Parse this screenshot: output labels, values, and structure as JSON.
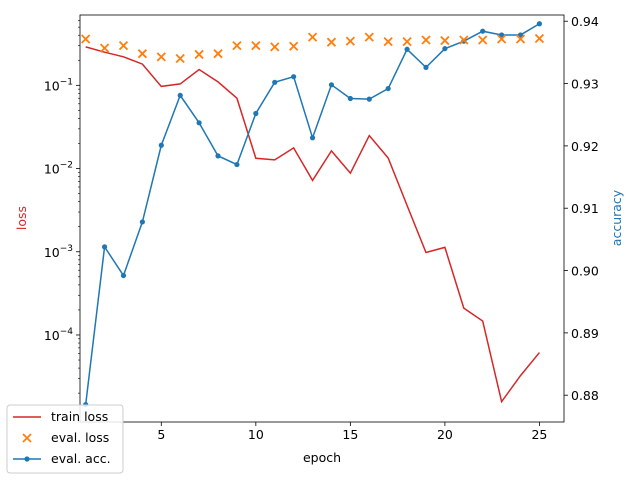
{
  "chart_data": {
    "type": "line",
    "title": "",
    "xlabel": "epoch",
    "ylabel_left": "loss",
    "ylabel_right": "accuracy",
    "x_ticks": [
      5,
      10,
      15,
      20,
      25
    ],
    "x_range": [
      0.7,
      26.3
    ],
    "y_left_scale": "log",
    "y_left_range": [
      9e-06,
      0.7
    ],
    "y_left_ticks": [
      {
        "value": 0.0001,
        "base": "10",
        "exp": "−4"
      },
      {
        "value": 0.001,
        "base": "10",
        "exp": "−3"
      },
      {
        "value": 0.01,
        "base": "10",
        "exp": "−2"
      },
      {
        "value": 0.1,
        "base": "10",
        "exp": "−1"
      }
    ],
    "y_right_scale": "linear",
    "y_right_range": [
      0.8757,
      0.941
    ],
    "y_right_ticks": [
      "0.88",
      "0.89",
      "0.90",
      "0.91",
      "0.92",
      "0.93",
      "0.94"
    ],
    "legend_position": "bottom-left",
    "grid": false,
    "colors": {
      "train_loss": "#d62728",
      "eval_loss": "#ff7f0e",
      "eval_acc": "#1f77b4"
    },
    "series": [
      {
        "name": "train loss",
        "axis": "left",
        "style": "line",
        "x": [
          1,
          2,
          3,
          4,
          5,
          6,
          7,
          8,
          9,
          10,
          11,
          12,
          13,
          14,
          15,
          16,
          17,
          18,
          19,
          20,
          21,
          22,
          23,
          24,
          25
        ],
        "y": [
          0.29,
          0.25,
          0.22,
          0.18,
          0.097,
          0.104,
          0.155,
          0.11,
          0.07,
          0.0133,
          0.0127,
          0.0177,
          0.0072,
          0.0163,
          0.0088,
          0.0249,
          0.0134,
          0.0036,
          0.00098,
          0.00113,
          0.00021,
          0.000147,
          1.58e-05,
          3.25e-05,
          6.15e-05
        ]
      },
      {
        "name": "eval. loss",
        "axis": "left",
        "style": "x-markers",
        "x": [
          1,
          2,
          3,
          4,
          5,
          6,
          7,
          8,
          9,
          10,
          11,
          12,
          13,
          14,
          15,
          16,
          17,
          18,
          19,
          20,
          21,
          22,
          23,
          24,
          25
        ],
        "y": [
          0.36,
          0.28,
          0.3,
          0.24,
          0.22,
          0.21,
          0.235,
          0.24,
          0.3,
          0.3,
          0.29,
          0.295,
          0.38,
          0.33,
          0.34,
          0.38,
          0.335,
          0.335,
          0.35,
          0.345,
          0.35,
          0.35,
          0.36,
          0.36,
          0.365
        ]
      },
      {
        "name": "eval. acc.",
        "axis": "right",
        "style": "line-dots",
        "x": [
          1,
          2,
          3,
          4,
          5,
          6,
          7,
          8,
          9,
          10,
          11,
          12,
          13,
          14,
          15,
          16,
          17,
          18,
          19,
          20,
          21,
          22,
          23,
          24,
          25
        ],
        "y": [
          0.8785,
          0.9038,
          0.8992,
          0.9078,
          0.9201,
          0.9281,
          0.9237,
          0.9184,
          0.917,
          0.9252,
          0.9302,
          0.9311,
          0.9213,
          0.9298,
          0.9276,
          0.9275,
          0.9292,
          0.9355,
          0.9326,
          0.9356,
          0.9368,
          0.9384,
          0.9378,
          0.9378,
          0.9396
        ]
      }
    ]
  }
}
